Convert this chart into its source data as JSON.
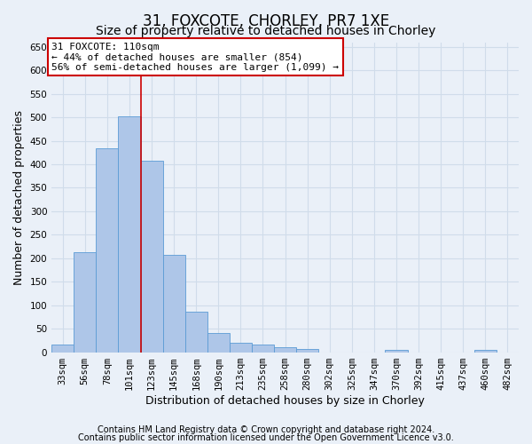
{
  "title1": "31, FOXCOTE, CHORLEY, PR7 1XE",
  "title2": "Size of property relative to detached houses in Chorley",
  "xlabel": "Distribution of detached houses by size in Chorley",
  "ylabel": "Number of detached properties",
  "bin_labels": [
    "33sqm",
    "56sqm",
    "78sqm",
    "101sqm",
    "123sqm",
    "145sqm",
    "168sqm",
    "190sqm",
    "213sqm",
    "235sqm",
    "258sqm",
    "280sqm",
    "302sqm",
    "325sqm",
    "347sqm",
    "370sqm",
    "392sqm",
    "415sqm",
    "437sqm",
    "460sqm",
    "482sqm"
  ],
  "bar_heights": [
    17,
    213,
    435,
    503,
    408,
    208,
    86,
    40,
    20,
    17,
    11,
    6,
    0,
    0,
    0,
    5,
    0,
    0,
    0,
    5,
    0
  ],
  "bar_color": "#aec6e8",
  "bar_edge_color": "#5b9bd5",
  "red_line_x": 3.5,
  "red_line_color": "#cc0000",
  "annotation_text": "31 FOXCOTE: 110sqm\n← 44% of detached houses are smaller (854)\n56% of semi-detached houses are larger (1,099) →",
  "annotation_box_color": "#ffffff",
  "annotation_box_edge": "#cc0000",
  "ylim": [
    0,
    660
  ],
  "yticks": [
    0,
    50,
    100,
    150,
    200,
    250,
    300,
    350,
    400,
    450,
    500,
    550,
    600,
    650
  ],
  "footnote1": "Contains HM Land Registry data © Crown copyright and database right 2024.",
  "footnote2": "Contains public sector information licensed under the Open Government Licence v3.0.",
  "background_color": "#eaf0f8",
  "grid_color": "#d0dcea",
  "title1_fontsize": 12,
  "title2_fontsize": 10,
  "xlabel_fontsize": 9,
  "ylabel_fontsize": 9,
  "tick_fontsize": 7.5,
  "annotation_fontsize": 8,
  "footnote_fontsize": 7
}
